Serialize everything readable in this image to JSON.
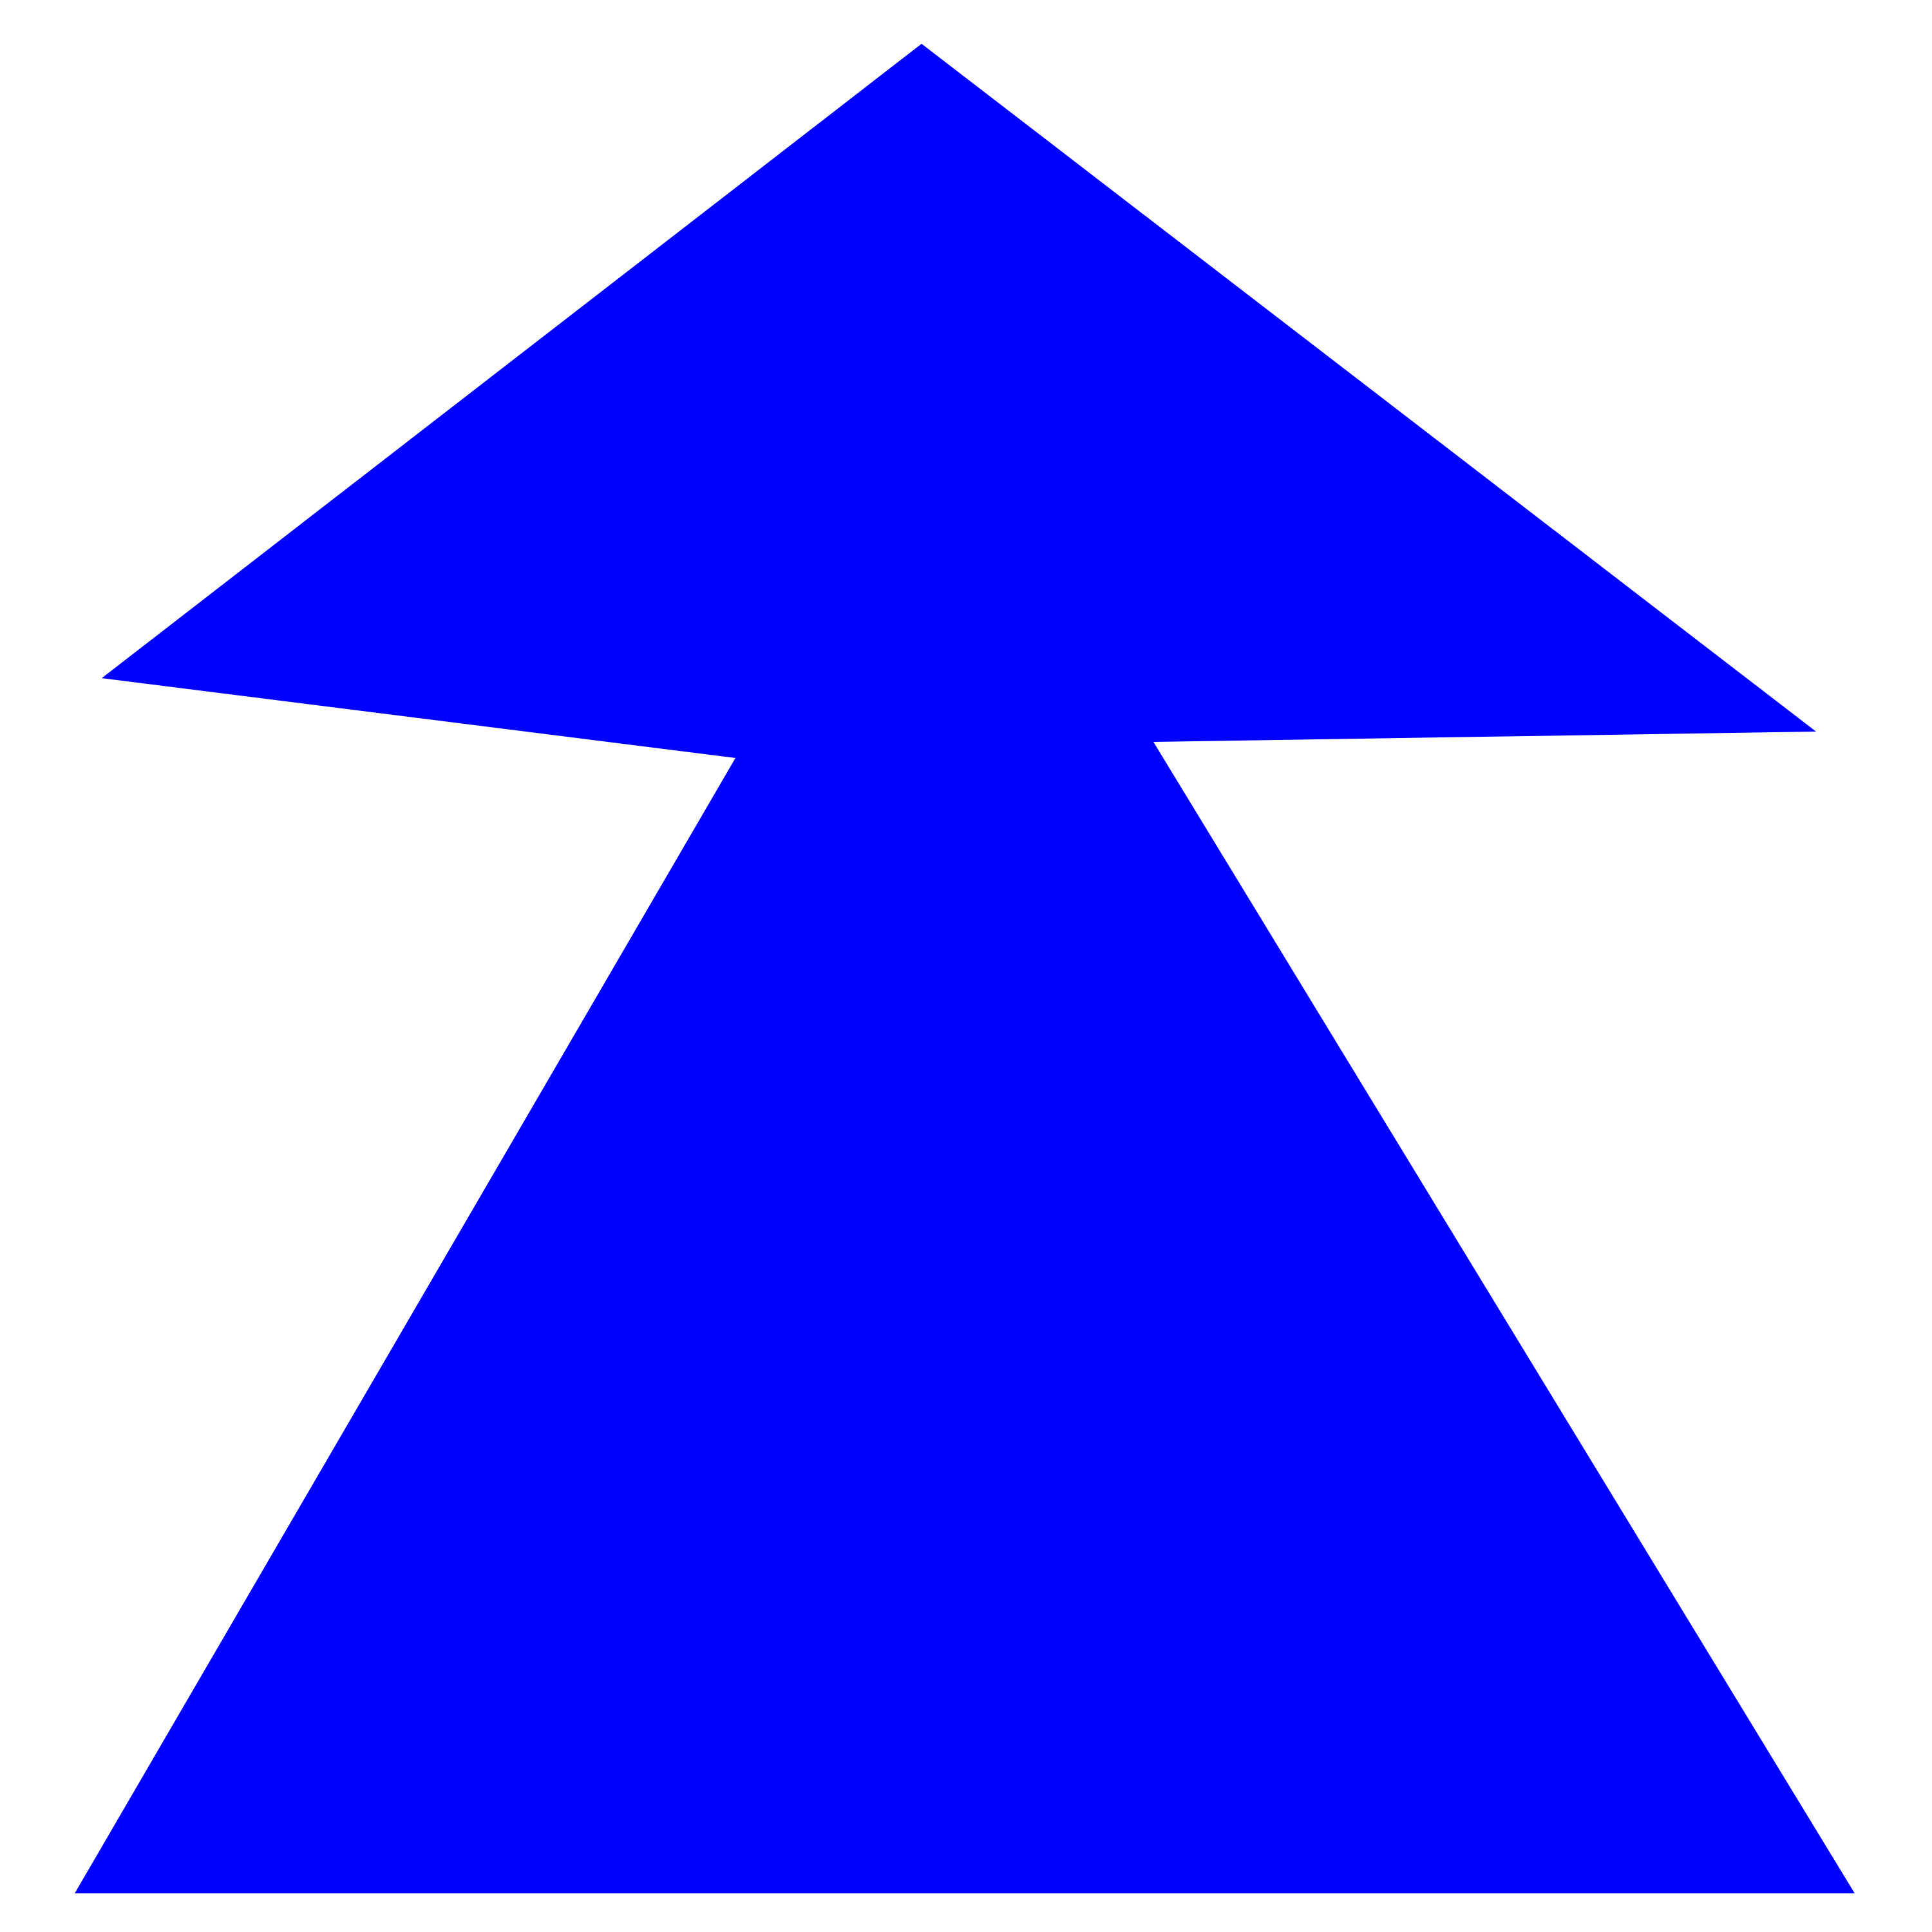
{
  "canvas": {
    "background": "#ffffff"
  },
  "shape": {
    "kind": "up-arrow",
    "fill": "#0000ff",
    "icon": "up-arrow-icon"
  }
}
